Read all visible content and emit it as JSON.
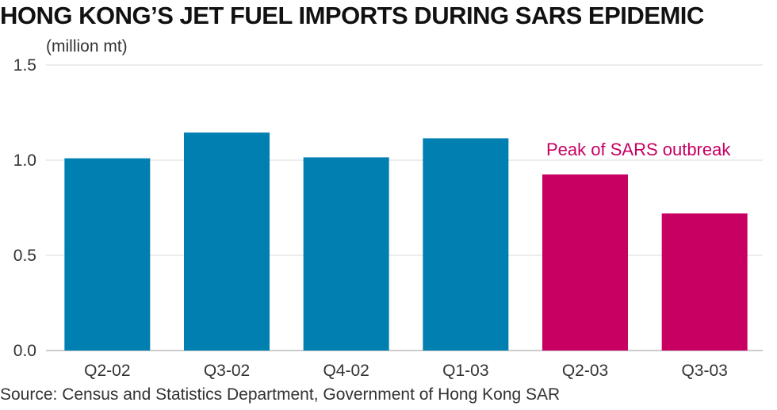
{
  "title": "HONG KONG’S JET FUEL IMPORTS DURING SARS EPIDEMIC",
  "unit": "(million mt)",
  "source": "Source: Census and Statistics Department, Government of Hong Kong SAR",
  "colors": {
    "normal": "#007fb1",
    "highlight": "#c70062",
    "grid": "#d9d9d9",
    "axis": "#999999"
  },
  "chart_data": {
    "type": "bar",
    "categories": [
      "Q2-02",
      "Q3-02",
      "Q4-02",
      "Q1-03",
      "Q2-03",
      "Q3-03"
    ],
    "values": [
      1.01,
      1.145,
      1.015,
      1.115,
      0.925,
      0.72
    ],
    "highlighted": [
      "Q2-03",
      "Q3-03"
    ],
    "ylim": [
      0,
      1.5
    ],
    "yticks": [
      "0.0",
      "0.5",
      "1.0",
      "1.5"
    ],
    "ytick_values": [
      0,
      0.5,
      1.0,
      1.5
    ],
    "ylabel": "(million mt)",
    "xlabel": "",
    "grid": true,
    "annotation": "Peak of SARS outbreak"
  }
}
